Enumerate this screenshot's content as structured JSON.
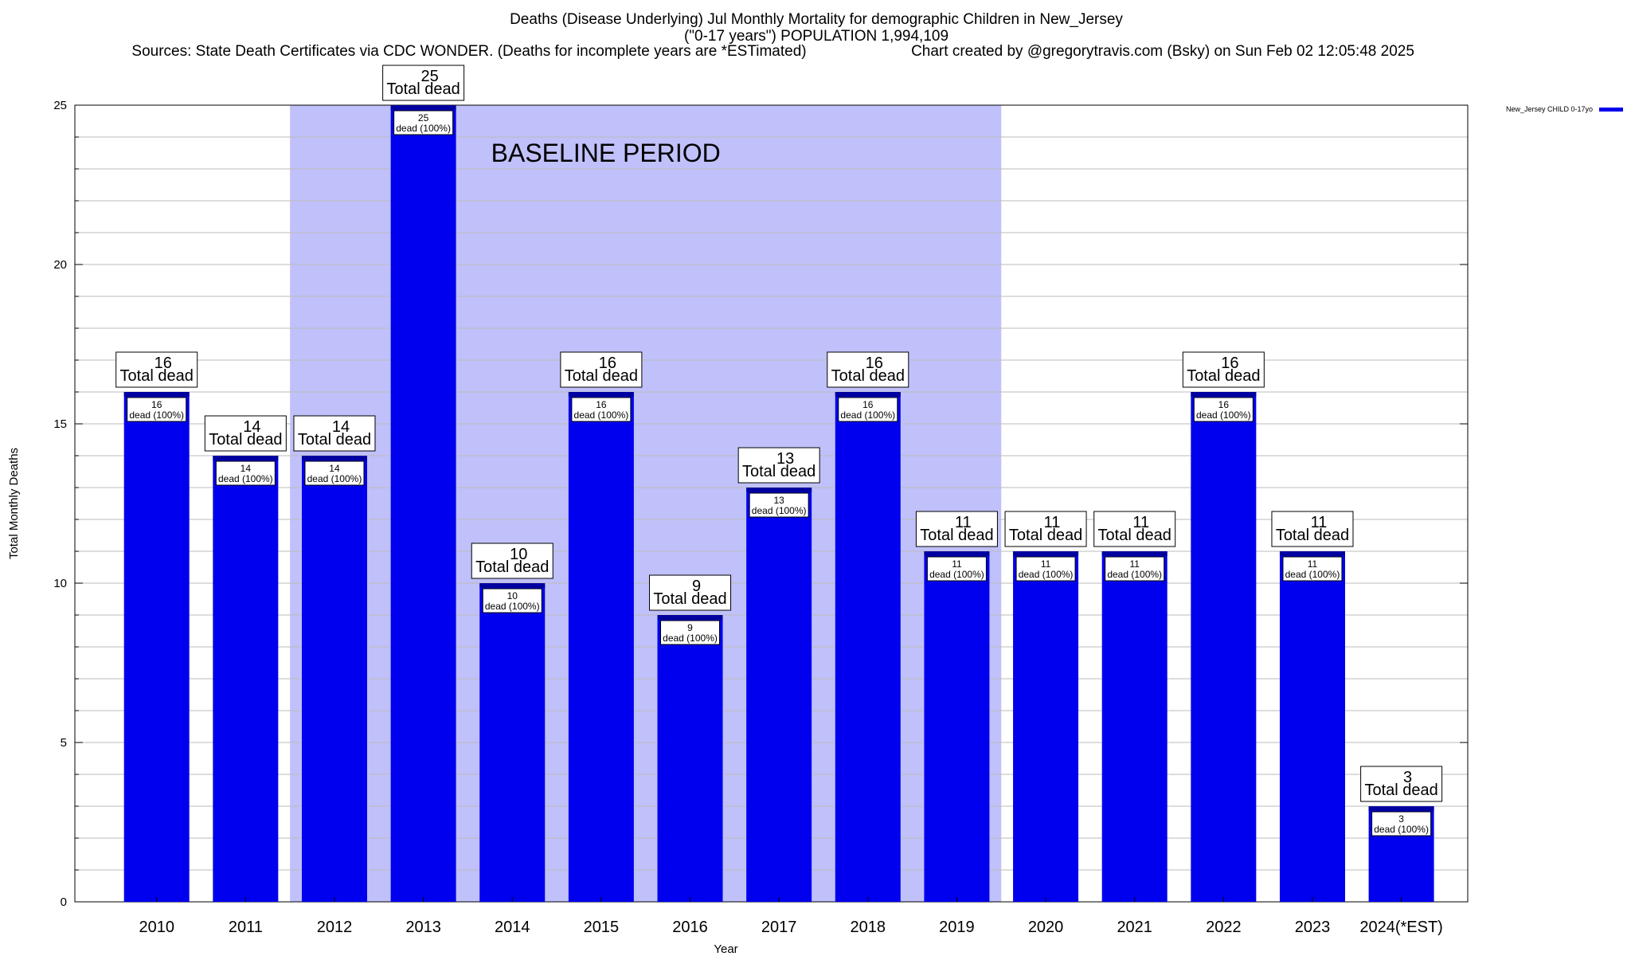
{
  "header": {
    "title": "Deaths (Disease Underlying) Jul Monthly Mortality for demographic Children in New_Jersey",
    "subtitle": "(\"0-17 years\") POPULATION 1,994,109",
    "sources": "Sources: State Death Certificates via CDC WONDER. (Deaths for incomplete years are *ESTimated)",
    "credit": "Chart created by @gregorytravis.com (Bsky) on Sun Feb 02 12:05:48 2025"
  },
  "colors": {
    "bar": "#0000ee",
    "baseline_shade": "#c0c0fa",
    "grid": "#bbbbbb"
  },
  "chart_data": {
    "type": "bar",
    "categories": [
      "2010",
      "2011",
      "2012",
      "2013",
      "2014",
      "2015",
      "2016",
      "2017",
      "2018",
      "2019",
      "2020",
      "2021",
      "2022",
      "2023",
      "2024(*EST)"
    ],
    "series": [
      {
        "name": "New_Jersey CHILD 0-17yo",
        "values": [
          16,
          14,
          14,
          25,
          10,
          16,
          9,
          13,
          16,
          11,
          11,
          11,
          16,
          11,
          3
        ]
      }
    ],
    "total_label": "Total dead",
    "inner_label": "dead (100%)",
    "baseline_label": "BASELINE PERIOD",
    "baseline_range": [
      "2012",
      "2019"
    ],
    "xlabel": "Year",
    "ylabel": "Total Monthly Deaths",
    "ylim": [
      0,
      25
    ],
    "yticks": [
      0,
      5,
      10,
      15,
      20,
      25
    ],
    "grid": true,
    "legend_position": "top-right"
  }
}
